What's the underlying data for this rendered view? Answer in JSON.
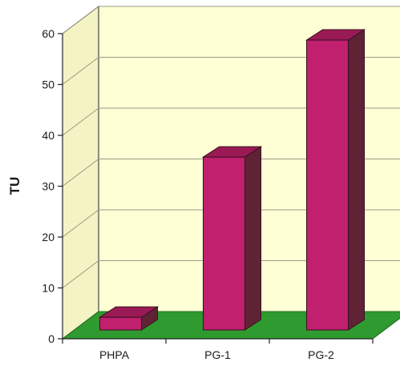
{
  "chart_data": {
    "type": "bar",
    "style": "3d",
    "categories": [
      "PHPA",
      "PG-1",
      "PG-2"
    ],
    "values": [
      2.5,
      34,
      57
    ],
    "ylabel": "TU",
    "ylim": [
      0,
      60
    ],
    "yticks": [
      0,
      10,
      20,
      30,
      40,
      50,
      60
    ],
    "grid": true,
    "legend": "none"
  },
  "colors": {
    "bar_front": "#c0206e",
    "bar_side": "#5f2335",
    "bar_top": "#9a1a55",
    "plot_back_wall": "#ffffd6",
    "plot_side_wall": "#f3f3c4",
    "floor": "#2f9a2f",
    "gridline": "#9a9a86",
    "axis": "#222222"
  }
}
